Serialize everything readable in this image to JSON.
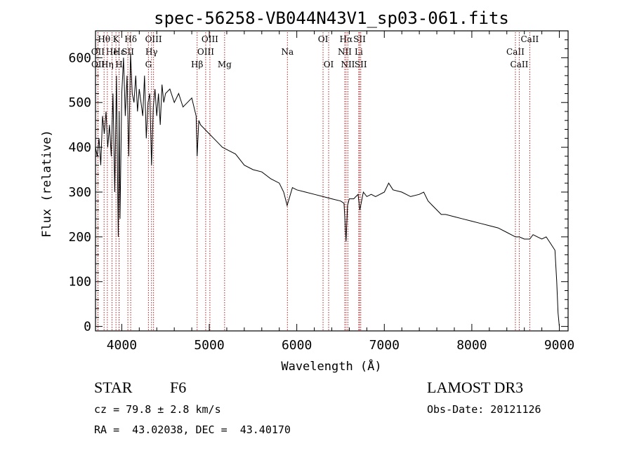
{
  "colors": {
    "axis": "#000000",
    "line": "#000000",
    "marker": "#b22222"
  },
  "chart_data": {
    "type": "line",
    "title": "spec-56258-VB044N43V1_sp03-061.fits",
    "xlabel": "Wavelength (Å)",
    "ylabel": "Flux (relative)",
    "xlim": [
      3700,
      9100
    ],
    "ylim": [
      -10,
      660
    ],
    "xticks": [
      4000,
      5000,
      6000,
      7000,
      8000,
      9000
    ],
    "yticks": [
      0,
      100,
      200,
      300,
      400,
      500,
      600
    ],
    "grid": false,
    "series": [
      {
        "name": "flux",
        "x": [
          3700,
          3720,
          3740,
          3760,
          3780,
          3800,
          3820,
          3840,
          3860,
          3880,
          3900,
          3920,
          3940,
          3960,
          3970,
          3980,
          4000,
          4020,
          4040,
          4060,
          4080,
          4100,
          4120,
          4140,
          4160,
          4180,
          4200,
          4220,
          4240,
          4260,
          4280,
          4300,
          4320,
          4340,
          4360,
          4380,
          4400,
          4420,
          4440,
          4460,
          4480,
          4500,
          4550,
          4600,
          4650,
          4700,
          4750,
          4800,
          4850,
          4861,
          4880,
          4900,
          4950,
          5000,
          5050,
          5100,
          5150,
          5200,
          5300,
          5400,
          5500,
          5600,
          5700,
          5800,
          5850,
          5890,
          5950,
          6000,
          6100,
          6200,
          6300,
          6400,
          6500,
          6540,
          6563,
          6580,
          6600,
          6650,
          6700,
          6720,
          6760,
          6800,
          6850,
          6900,
          7000,
          7050,
          7100,
          7200,
          7300,
          7400,
          7450,
          7500,
          7550,
          7600,
          7650,
          7700,
          7800,
          7900,
          8000,
          8100,
          8200,
          8300,
          8400,
          8498,
          8542,
          8600,
          8662,
          8700,
          8750,
          8800,
          8850,
          8900,
          8950,
          8970,
          8985,
          9000
        ],
        "values": [
          400,
          380,
          420,
          360,
          470,
          430,
          480,
          400,
          450,
          380,
          520,
          300,
          560,
          200,
          480,
          240,
          520,
          600,
          470,
          560,
          380,
          610,
          520,
          500,
          560,
          480,
          530,
          500,
          470,
          560,
          420,
          500,
          520,
          360,
          490,
          530,
          470,
          520,
          450,
          540,
          500,
          520,
          530,
          500,
          520,
          490,
          500,
          510,
          470,
          380,
          460,
          450,
          440,
          430,
          420,
          410,
          400,
          395,
          385,
          360,
          350,
          345,
          330,
          320,
          300,
          270,
          310,
          305,
          300,
          295,
          290,
          285,
          280,
          275,
          190,
          270,
          285,
          285,
          295,
          260,
          300,
          290,
          295,
          290,
          300,
          320,
          305,
          300,
          290,
          295,
          300,
          280,
          270,
          260,
          250,
          250,
          245,
          240,
          235,
          230,
          225,
          220,
          210,
          200,
          200,
          195,
          195,
          205,
          200,
          195,
          200,
          185,
          170,
          100,
          30,
          0
        ]
      }
    ],
    "line_markers": [
      {
        "label": "Hθ",
        "wavelength": 3798,
        "row": 1
      },
      {
        "label": "OII",
        "wavelength": 3727,
        "row": 2
      },
      {
        "label": "OII",
        "wavelength": 3729,
        "row": 3
      },
      {
        "label": "He",
        "wavelength": 3889,
        "row": 2
      },
      {
        "label": "Hη",
        "wavelength": 3835,
        "row": 3
      },
      {
        "label": "K",
        "wavelength": 3934,
        "row": 1
      },
      {
        "label": "H",
        "wavelength": 3969,
        "row": 3
      },
      {
        "label": "Hε",
        "wavelength": 3970,
        "row": 2
      },
      {
        "label": "Hδ",
        "wavelength": 4102,
        "row": 1
      },
      {
        "label": "SII",
        "wavelength": 4070,
        "row": 2
      },
      {
        "label": "OIII",
        "wavelength": 4363,
        "row": 1
      },
      {
        "label": "Hγ",
        "wavelength": 4340,
        "row": 2
      },
      {
        "label": "G",
        "wavelength": 4305,
        "row": 3
      },
      {
        "label": "OIII",
        "wavelength": 5007,
        "row": 1
      },
      {
        "label": "OIII",
        "wavelength": 4959,
        "row": 2
      },
      {
        "label": "Hβ",
        "wavelength": 4861,
        "row": 3
      },
      {
        "label": "Mg",
        "wavelength": 5175,
        "row": 3
      },
      {
        "label": "Na",
        "wavelength": 5893,
        "row": 2
      },
      {
        "label": "OI",
        "wavelength": 6300,
        "row": 1
      },
      {
        "label": "OI",
        "wavelength": 6364,
        "row": 3
      },
      {
        "label": "Hα",
        "wavelength": 6563,
        "row": 1
      },
      {
        "label": "NII",
        "wavelength": 6548,
        "row": 2
      },
      {
        "label": "NII",
        "wavelength": 6584,
        "row": 3
      },
      {
        "label": "SII",
        "wavelength": 6717,
        "row": 1
      },
      {
        "label": "Li",
        "wavelength": 6708,
        "row": 2
      },
      {
        "label": "SII",
        "wavelength": 6731,
        "row": 3
      },
      {
        "label": "CaII",
        "wavelength": 8662,
        "row": 1
      },
      {
        "label": "CaII",
        "wavelength": 8498,
        "row": 2
      },
      {
        "label": "CaII",
        "wavelength": 8542,
        "row": 3
      }
    ]
  },
  "info": {
    "object_class": "STAR",
    "subclass": "F6",
    "survey": "LAMOST DR3",
    "velocity": "cz = 79.8 ± 2.8 km/s",
    "obs_date": "Obs-Date: 20121126",
    "coords": "RA =  43.02038, DEC =  43.40170"
  }
}
